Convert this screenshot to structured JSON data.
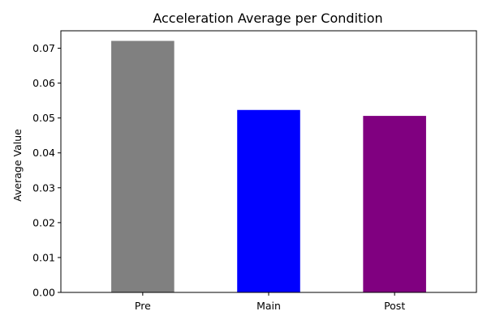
{
  "chart_data": {
    "type": "bar",
    "title": "Acceleration Average per Condition",
    "xlabel": "",
    "ylabel": "Average Value",
    "categories": [
      "Pre",
      "Main",
      "Post"
    ],
    "values": [
      0.0721,
      0.0523,
      0.0506
    ],
    "colors": [
      "#808080",
      "#0000ff",
      "#800080"
    ],
    "ylim": [
      0,
      0.075
    ],
    "yticks": [
      0.0,
      0.01,
      0.02,
      0.03,
      0.04,
      0.05,
      0.06,
      0.07
    ],
    "ytick_labels": [
      "0.00",
      "0.01",
      "0.02",
      "0.03",
      "0.04",
      "0.05",
      "0.06",
      "0.07"
    ],
    "grid": false,
    "legend": "none"
  }
}
